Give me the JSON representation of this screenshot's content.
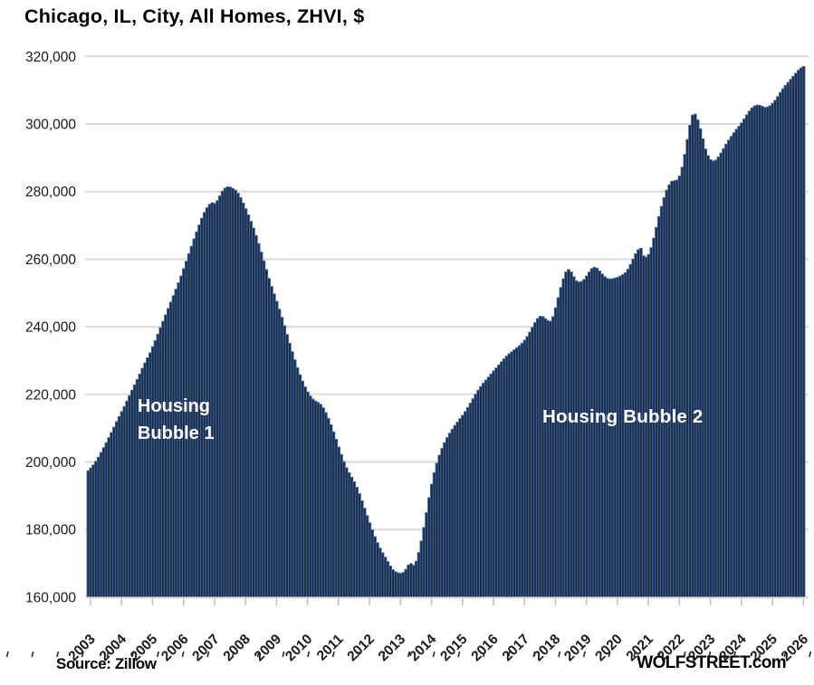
{
  "title": "Chicago, IL, City, All Homes, ZHVI, $",
  "annotations": {
    "bubble1_line1": "Housing",
    "bubble1_line2": "Bubble 1",
    "bubble2": "Housing Bubble 2"
  },
  "footer": {
    "source": "Source: Zillow",
    "watermark": "WOLFSTREET.com"
  },
  "colors": {
    "bar_fill": "#1d2b40",
    "bar_stroke": "#3f67a7",
    "gridline": "#d9d9d9",
    "tick": "#bfbfbf",
    "axis_text": "#1a1a1a",
    "annotation_text": "#ffffff",
    "ruler_tick": "#2b2b2b"
  },
  "y_axis": {
    "ticks": [
      320000,
      300000,
      280000,
      260000,
      240000,
      220000,
      200000,
      180000,
      160000
    ]
  },
  "chart_data": {
    "type": "bar",
    "title": "Chicago, IL, City, All Homes, ZHVI, $",
    "xlabel": "",
    "ylabel": "ZHVI, $",
    "frequency": "monthly",
    "x_start": "2003-01",
    "x_end": "2026-02",
    "ylim": [
      160000,
      320000
    ],
    "ytick_interval": 20000,
    "grid": "horizontal",
    "legend": "none",
    "xtick_years": [
      2003,
      2004,
      2005,
      2006,
      2007,
      2008,
      2009,
      2010,
      2011,
      2012,
      2013,
      2014,
      2015,
      2016,
      2017,
      2018,
      2019,
      2020,
      2021,
      2022,
      2023,
      2024,
      2025,
      2026
    ],
    "values": [
      197400,
      198200,
      199100,
      200200,
      201400,
      202800,
      204200,
      205700,
      207200,
      208700,
      210300,
      211900,
      213400,
      214900,
      216400,
      218000,
      219600,
      221200,
      222800,
      224400,
      226000,
      227700,
      229300,
      230800,
      232300,
      234100,
      235900,
      237800,
      239700,
      241600,
      243500,
      245400,
      247300,
      249200,
      251100,
      253000,
      255000,
      257200,
      259400,
      261600,
      263800,
      266000,
      268100,
      270100,
      272100,
      273800,
      275200,
      276200,
      276700,
      276500,
      277300,
      278700,
      280100,
      281000,
      281400,
      281300,
      280900,
      280400,
      279500,
      278200,
      276600,
      274900,
      273100,
      271200,
      269200,
      267000,
      264600,
      262100,
      259500,
      256900,
      254300,
      251900,
      249700,
      247500,
      245200,
      242800,
      240300,
      237700,
      235100,
      232600,
      230200,
      227900,
      225800,
      223900,
      222200,
      220700,
      219500,
      218600,
      218000,
      217600,
      217000,
      216000,
      214600,
      212900,
      211000,
      208900,
      206700,
      204400,
      202200,
      200100,
      198300,
      196800,
      195500,
      194100,
      192500,
      190600,
      188500,
      186300,
      184100,
      182000,
      179900,
      177900,
      176100,
      174500,
      173100,
      171800,
      170500,
      169200,
      168100,
      167500,
      167200,
      167000,
      167300,
      168200,
      169500,
      169900,
      169400,
      170600,
      173200,
      176600,
      180600,
      185000,
      189400,
      193400,
      196800,
      199600,
      202000,
      204000,
      205700,
      207200,
      208500,
      209700,
      210800,
      211800,
      212800,
      213800,
      214900,
      216100,
      217400,
      218700,
      220000,
      221200,
      222300,
      223300,
      224200,
      225100,
      226000,
      226900,
      227800,
      228700,
      229600,
      230500,
      231300,
      232000,
      232600,
      233200,
      233800,
      234400,
      235100,
      236000,
      237100,
      238400,
      239800,
      241200,
      242400,
      243100,
      243000,
      242400,
      241800,
      241600,
      243000,
      245600,
      248600,
      251600,
      254200,
      256200,
      256900,
      256200,
      254800,
      253600,
      253200,
      253400,
      254000,
      255000,
      256200,
      257200,
      257600,
      257300,
      256500,
      255600,
      254800,
      254300,
      254100,
      254200,
      254400,
      254600,
      255000,
      255400,
      256000,
      257000,
      258400,
      260000,
      261600,
      262800,
      263200,
      261000,
      260600,
      261400,
      263400,
      266200,
      269400,
      272600,
      275600,
      278200,
      280400,
      282000,
      283000,
      283200,
      283400,
      284600,
      287200,
      291000,
      295400,
      299600,
      302600,
      302900,
      301200,
      298600,
      295600,
      292600,
      290600,
      289400,
      289000,
      289300,
      290200,
      291400,
      292700,
      294000,
      295200,
      296300,
      297400,
      298400,
      299300,
      300300,
      301500,
      302700,
      303800,
      304700,
      305300,
      305600,
      305500,
      305200,
      304900,
      305000,
      305400,
      306100,
      307000,
      308100,
      309300,
      310400,
      311400,
      312300,
      313200,
      314100,
      315000,
      315900,
      316600,
      317000
    ]
  }
}
